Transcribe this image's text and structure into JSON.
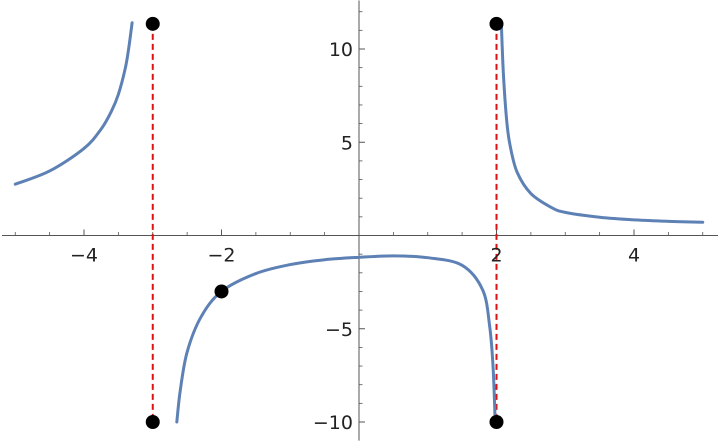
{
  "chart_data": {
    "type": "line",
    "title": "",
    "xlabel": "",
    "ylabel": "",
    "xlim": [
      -5.2,
      5.2
    ],
    "ylim": [
      -11.0,
      12.6
    ],
    "x_ticks": [
      {
        "value": -4,
        "label": "−4"
      },
      {
        "value": -2,
        "label": "−2"
      },
      {
        "value": 2,
        "label": "2"
      },
      {
        "value": 4,
        "label": "4"
      }
    ],
    "y_ticks": [
      {
        "value": -10,
        "label": "−10"
      },
      {
        "value": -5,
        "label": "−5"
      },
      {
        "value": 5,
        "label": "5"
      },
      {
        "value": 10,
        "label": "10"
      }
    ],
    "x_minor_ticks": [
      -5,
      -4.5,
      -3.5,
      -3,
      -2.5,
      -1.5,
      -1,
      -0.5,
      0.5,
      1,
      1.5,
      2.5,
      3,
      3.5,
      4.5,
      5
    ],
    "y_minor_ticks": [
      -9,
      -8,
      -7,
      -6,
      -4,
      -3,
      -2,
      -1,
      1,
      2,
      3,
      4,
      6,
      7,
      8,
      9,
      11,
      12
    ],
    "grid": false,
    "series": [
      {
        "segments": [
          [
            [
              -5.0,
              2.75
            ],
            [
              -4.5,
              3.46
            ],
            [
              -4.0,
              4.67
            ],
            [
              -3.75,
              5.71
            ],
            [
              -3.6,
              6.67
            ],
            [
              -3.5,
              7.57
            ],
            [
              -3.4,
              8.96
            ],
            [
              -3.35,
              10.03
            ],
            [
              -3.3,
              11.41
            ]
          ],
          [
            [
              -2.65,
              -10.0
            ],
            [
              -2.6,
              -8.31
            ],
            [
              -2.5,
              -6.25
            ],
            [
              -2.3,
              -4.38
            ],
            [
              -2.0,
              -3.0
            ],
            [
              -1.5,
              -2.04
            ],
            [
              -1.0,
              -1.56
            ],
            [
              -0.5,
              -1.3
            ],
            [
              0.0,
              -1.17
            ],
            [
              0.5,
              -1.09
            ],
            [
              1.0,
              -1.19
            ],
            [
              1.5,
              -1.6
            ],
            [
              1.8,
              -2.93
            ],
            [
              1.9,
              -4.85
            ],
            [
              1.95,
              -7.04
            ],
            [
              1.98,
              -9.9
            ]
          ],
          [
            [
              2.07,
              11.41
            ],
            [
              2.1,
              8.68
            ],
            [
              2.15,
              6.09
            ],
            [
              2.2,
              4.78
            ],
            [
              2.3,
              3.39
            ],
            [
              2.5,
              2.25
            ],
            [
              2.8,
              1.5
            ],
            [
              3.0,
              1.24
            ],
            [
              3.5,
              0.98
            ],
            [
              4.0,
              0.84
            ],
            [
              4.5,
              0.76
            ],
            [
              5.0,
              0.71
            ]
          ]
        ],
        "color": "#5E81B5"
      }
    ],
    "asymptotes": [
      {
        "x": -3,
        "y_from": -10,
        "y_to": 11.35,
        "color": "#DD1111"
      },
      {
        "x": 2,
        "y_from": -10,
        "y_to": 11.35,
        "color": "#DD1111"
      }
    ],
    "points": [
      {
        "x": -3,
        "y": 11.35
      },
      {
        "x": -3,
        "y": -10
      },
      {
        "x": -2,
        "y": -3
      },
      {
        "x": 2,
        "y": 11.35
      },
      {
        "x": 2,
        "y": -10
      }
    ],
    "point_color": "#000000",
    "axis_color": "#555555"
  }
}
